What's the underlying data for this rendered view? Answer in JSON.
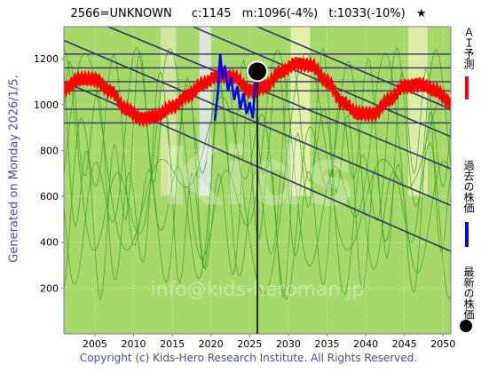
{
  "header": {
    "code": "2566=UNKNOWN",
    "current": "c:1145",
    "mid": "m:1096(-4%)",
    "target": "t:1033(-10%)",
    "star": "★"
  },
  "side_label": "Generated on Monday 2026/1/5.",
  "watermark": {
    "logo": "Kids",
    "url": "info@kids-heroman.jp"
  },
  "footer": "Copyright (c) Kids-Hero Research Institute. All Rights Reserved.",
  "legend": {
    "forecast": "ＡＩ予測",
    "past": "過去の株価",
    "latest": "最新の株価"
  },
  "colors": {
    "background": "#a6d96a",
    "forecast": "#ff0000",
    "past": "#0000ff",
    "trend": "#333366",
    "hline": "#333366",
    "latest": "#000000"
  },
  "chart_data": {
    "type": "line",
    "xlim": [
      2001,
      2051
    ],
    "ylim": [
      0,
      1340
    ],
    "x_ticks": [
      2005,
      2010,
      2015,
      2020,
      2025,
      2030,
      2035,
      2040,
      2045,
      2050
    ],
    "y_ticks": [
      200,
      400,
      600,
      800,
      1000,
      1200
    ],
    "grid": true,
    "legend_position": "right",
    "horizontal_levels": [
      1220,
      1160,
      1100,
      1060,
      980,
      920
    ],
    "trend_lines": [
      {
        "x": [
          2001,
          2051
        ],
        "y": [
          1700,
          980
        ]
      },
      {
        "x": [
          2001,
          2051
        ],
        "y": [
          1580,
          860
        ]
      },
      {
        "x": [
          2001,
          2051
        ],
        "y": [
          1420,
          720
        ]
      },
      {
        "x": [
          2001,
          2051
        ],
        "y": [
          1280,
          560
        ]
      },
      {
        "x": [
          2001,
          2051
        ],
        "y": [
          1100,
          360
        ]
      }
    ],
    "series": [
      {
        "name": "ＡＩ予測",
        "x": [
          2001,
          2003,
          2005,
          2007,
          2009,
          2011,
          2013,
          2015,
          2017,
          2019,
          2021,
          2023,
          2025,
          2027,
          2029,
          2031,
          2033,
          2035,
          2037,
          2039,
          2041,
          2043,
          2045,
          2047,
          2049,
          2051
        ],
        "y": [
          1070,
          1110,
          1110,
          1060,
          980,
          940,
          950,
          990,
          1040,
          1090,
          1130,
          1120,
          1060,
          1080,
          1140,
          1180,
          1170,
          1100,
          1010,
          960,
          960,
          1020,
          1080,
          1090,
          1060,
          1010
        ]
      },
      {
        "name": "過去の株価",
        "x": [
          2020.5,
          2020.9,
          2021.2,
          2021.5,
          2021.8,
          2022.2,
          2022.6,
          2023.0,
          2023.4,
          2023.8,
          2024.2,
          2024.6,
          2025.0,
          2025.4,
          2025.8
        ],
        "y": [
          930,
          1050,
          1220,
          1110,
          1170,
          1060,
          1120,
          1020,
          1080,
          980,
          1050,
          960,
          1010,
          940,
          1130
        ]
      }
    ],
    "latest": {
      "x": 2026.0,
      "y": 1145
    }
  }
}
